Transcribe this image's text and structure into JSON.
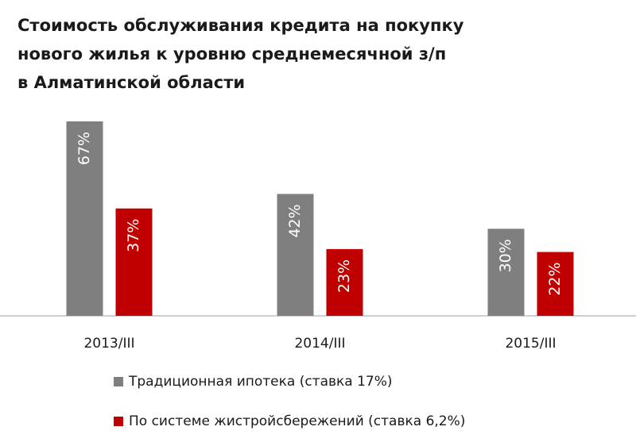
{
  "chart_data": {
    "type": "bar",
    "title": "Стоимость обслуживания кредита на покупку\nнового жилья к уровню среднемесячной з/п\nв Алматинской области",
    "categories": [
      "2013/III",
      "2014/III",
      "2015/III"
    ],
    "series": [
      {
        "name": "Традиционная ипотека (ставка 17%)",
        "color": "#7f7f7f",
        "values": [
          67,
          42,
          30
        ],
        "value_labels": [
          "67%",
          "42%",
          "30%"
        ]
      },
      {
        "name": "По системе жистройсбережений (ставка 6,2%)",
        "color": "#c00000",
        "values": [
          37,
          23,
          22
        ],
        "value_labels": [
          "37%",
          "23%",
          "22%"
        ]
      }
    ],
    "legend": "bottom"
  }
}
